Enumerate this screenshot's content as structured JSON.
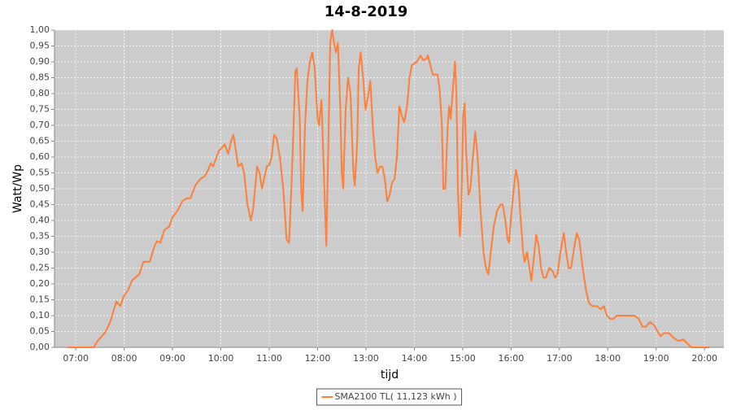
{
  "chart_data": {
    "type": "line",
    "title": "14-8-2019",
    "xlabel": "tijd",
    "ylabel": "Watt/Wp",
    "grid": true,
    "legend": "bottom",
    "xlim": [
      6.56,
      20.4
    ],
    "ylim": [
      0,
      1.0
    ],
    "xticks": [
      {
        "value": 7,
        "label": "07:00"
      },
      {
        "value": 8,
        "label": "08:00"
      },
      {
        "value": 9,
        "label": "09:00"
      },
      {
        "value": 10,
        "label": "10:00"
      },
      {
        "value": 11,
        "label": "11:00"
      },
      {
        "value": 12,
        "label": "12:00"
      },
      {
        "value": 13,
        "label": "13:00"
      },
      {
        "value": 14,
        "label": "14:00"
      },
      {
        "value": 15,
        "label": "15:00"
      },
      {
        "value": 16,
        "label": "16:00"
      },
      {
        "value": 17,
        "label": "17:00"
      },
      {
        "value": 18,
        "label": "18:00"
      },
      {
        "value": 19,
        "label": "19:00"
      },
      {
        "value": 20,
        "label": "20:00"
      }
    ],
    "yticks": [
      {
        "value": 0,
        "label": "0,00"
      },
      {
        "value": 0.05,
        "label": "0,05"
      },
      {
        "value": 0.1,
        "label": "0,10"
      },
      {
        "value": 0.15,
        "label": "0,15"
      },
      {
        "value": 0.2,
        "label": "0,20"
      },
      {
        "value": 0.25,
        "label": "0,25"
      },
      {
        "value": 0.3,
        "label": "0,30"
      },
      {
        "value": 0.35,
        "label": "0,35"
      },
      {
        "value": 0.4,
        "label": "0,40"
      },
      {
        "value": 0.45,
        "label": "0,45"
      },
      {
        "value": 0.5,
        "label": "0,50"
      },
      {
        "value": 0.55,
        "label": "0,55"
      },
      {
        "value": 0.6,
        "label": "0,60"
      },
      {
        "value": 0.65,
        "label": "0,65"
      },
      {
        "value": 0.7,
        "label": "0,70"
      },
      {
        "value": 0.75,
        "label": "0,75"
      },
      {
        "value": 0.8,
        "label": "0,80"
      },
      {
        "value": 0.85,
        "label": "0,85"
      },
      {
        "value": 0.9,
        "label": "0,90"
      },
      {
        "value": 0.95,
        "label": "0,95"
      },
      {
        "value": 1.0,
        "label": "1,00"
      }
    ],
    "x": [
      6.83,
      7.37,
      7.45,
      7.54,
      7.62,
      7.71,
      7.79,
      7.84,
      7.92,
      7.99,
      8.08,
      8.16,
      8.23,
      8.31,
      8.4,
      8.53,
      8.63,
      8.68,
      8.75,
      8.83,
      8.93,
      9.0,
      9.1,
      9.2,
      9.29,
      9.37,
      9.47,
      9.57,
      9.67,
      9.74,
      9.79,
      9.84,
      9.91,
      9.96,
      10.03,
      10.08,
      10.15,
      10.21,
      10.26,
      10.31,
      10.36,
      10.43,
      10.48,
      10.55,
      10.62,
      10.67,
      10.75,
      10.8,
      10.85,
      10.92,
      10.95,
      11.0,
      11.05,
      11.1,
      11.15,
      11.22,
      11.29,
      11.36,
      11.41,
      11.47,
      11.54,
      11.57,
      11.63,
      11.66,
      11.69,
      11.74,
      11.79,
      11.84,
      11.89,
      11.94,
      12.0,
      12.03,
      12.08,
      12.13,
      12.18,
      12.23,
      12.26,
      12.3,
      12.35,
      12.38,
      12.42,
      12.47,
      12.5,
      12.53,
      12.58,
      12.63,
      12.68,
      12.74,
      12.77,
      12.82,
      12.85,
      12.89,
      12.94,
      12.99,
      13.04,
      13.09,
      13.14,
      13.19,
      13.24,
      13.29,
      13.34,
      13.39,
      13.44,
      13.49,
      13.54,
      13.59,
      13.64,
      13.69,
      13.74,
      13.79,
      13.85,
      13.9,
      13.95,
      14.05,
      14.13,
      14.18,
      14.25,
      14.28,
      14.33,
      14.38,
      14.48,
      14.52,
      14.57,
      14.6,
      14.64,
      14.69,
      14.72,
      14.75,
      14.8,
      14.84,
      14.87,
      14.9,
      14.94,
      14.97,
      15.01,
      15.04,
      15.07,
      15.12,
      15.16,
      15.21,
      15.26,
      15.31,
      15.36,
      15.43,
      15.48,
      15.53,
      15.58,
      15.64,
      15.71,
      15.78,
      15.83,
      15.88,
      15.93,
      15.96,
      16.01,
      16.07,
      16.1,
      16.15,
      16.2,
      16.25,
      16.28,
      16.33,
      16.38,
      16.42,
      16.47,
      16.52,
      16.57,
      16.62,
      16.67,
      16.72,
      16.79,
      16.86,
      16.91,
      16.96,
      17.02,
      17.09,
      17.14,
      17.19,
      17.24,
      17.31,
      17.36,
      17.41,
      17.48,
      17.55,
      17.61,
      17.68,
      17.78,
      17.85,
      17.92,
      17.98,
      18.05,
      18.12,
      18.18,
      18.55,
      18.64,
      18.72,
      18.79,
      18.87,
      18.96,
      19.03,
      19.09,
      19.16,
      19.26,
      19.36,
      19.46,
      19.56,
      19.66,
      19.73,
      20.1
    ],
    "series": [
      {
        "name": "SMA2100 TL( 11,123 kWh )",
        "color": "#ff7f3a",
        "values": [
          0,
          0,
          0.02,
          0.035,
          0.05,
          0.08,
          0.12,
          0.145,
          0.13,
          0.16,
          0.18,
          0.21,
          0.22,
          0.23,
          0.27,
          0.27,
          0.32,
          0.335,
          0.33,
          0.37,
          0.38,
          0.41,
          0.43,
          0.46,
          0.47,
          0.47,
          0.51,
          0.53,
          0.54,
          0.56,
          0.58,
          0.57,
          0.6,
          0.62,
          0.63,
          0.64,
          0.61,
          0.65,
          0.67,
          0.62,
          0.57,
          0.58,
          0.55,
          0.45,
          0.4,
          0.44,
          0.57,
          0.55,
          0.5,
          0.55,
          0.57,
          0.575,
          0.6,
          0.67,
          0.66,
          0.6,
          0.5,
          0.34,
          0.33,
          0.55,
          0.87,
          0.88,
          0.72,
          0.5,
          0.43,
          0.7,
          0.84,
          0.9,
          0.93,
          0.88,
          0.72,
          0.7,
          0.78,
          0.55,
          0.32,
          0.7,
          0.96,
          1.0,
          0.95,
          0.93,
          0.96,
          0.75,
          0.55,
          0.5,
          0.75,
          0.85,
          0.8,
          0.55,
          0.51,
          0.65,
          0.88,
          0.93,
          0.85,
          0.75,
          0.79,
          0.84,
          0.7,
          0.6,
          0.55,
          0.57,
          0.57,
          0.53,
          0.46,
          0.48,
          0.52,
          0.53,
          0.6,
          0.76,
          0.73,
          0.71,
          0.76,
          0.85,
          0.89,
          0.9,
          0.92,
          0.905,
          0.91,
          0.92,
          0.89,
          0.86,
          0.86,
          0.82,
          0.7,
          0.5,
          0.5,
          0.7,
          0.76,
          0.72,
          0.82,
          0.9,
          0.8,
          0.5,
          0.35,
          0.42,
          0.73,
          0.77,
          0.62,
          0.48,
          0.5,
          0.6,
          0.68,
          0.6,
          0.45,
          0.3,
          0.25,
          0.23,
          0.3,
          0.38,
          0.43,
          0.45,
          0.45,
          0.4,
          0.34,
          0.33,
          0.43,
          0.52,
          0.56,
          0.52,
          0.4,
          0.3,
          0.27,
          0.3,
          0.25,
          0.21,
          0.28,
          0.355,
          0.32,
          0.25,
          0.22,
          0.22,
          0.25,
          0.24,
          0.22,
          0.23,
          0.3,
          0.36,
          0.3,
          0.25,
          0.25,
          0.32,
          0.36,
          0.34,
          0.25,
          0.18,
          0.14,
          0.13,
          0.13,
          0.12,
          0.13,
          0.1,
          0.09,
          0.09,
          0.1,
          0.1,
          0.09,
          0.065,
          0.065,
          0.08,
          0.07,
          0.05,
          0.035,
          0.045,
          0.045,
          0.03,
          0.02,
          0.025,
          0.01,
          0,
          0
        ]
      }
    ]
  }
}
